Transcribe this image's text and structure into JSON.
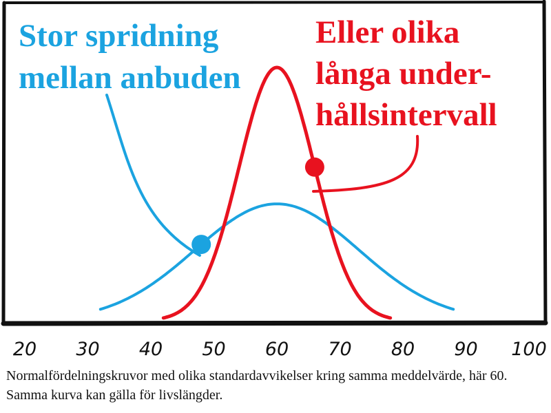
{
  "chart_data": {
    "type": "line",
    "title": "",
    "xlabel": "",
    "ylabel": "",
    "xlim": [
      20,
      100
    ],
    "x_ticks": [
      "20",
      "30",
      "40",
      "50",
      "60",
      "70",
      "80",
      "90",
      "100"
    ],
    "grid": false,
    "series": [
      {
        "color": "#1ba3e0",
        "mean": 60,
        "sd": 13,
        "x_range": [
          32,
          88
        ],
        "highlighted_point_x": 48,
        "annotation": [
          "Stor spridning",
          "mellan anbuden"
        ]
      },
      {
        "color": "#e8121f",
        "mean": 60,
        "sd": 6,
        "x_range": [
          42,
          78
        ],
        "highlighted_point_x": 66,
        "annotation": [
          "Eller olika",
          "långa under-",
          "hållsintervall"
        ]
      }
    ]
  },
  "caption": "Normalfördelningskruvor med olika standardavvikelser kring samma meddelvärde, här 60. Samma kurva kan gälla för livslängder."
}
